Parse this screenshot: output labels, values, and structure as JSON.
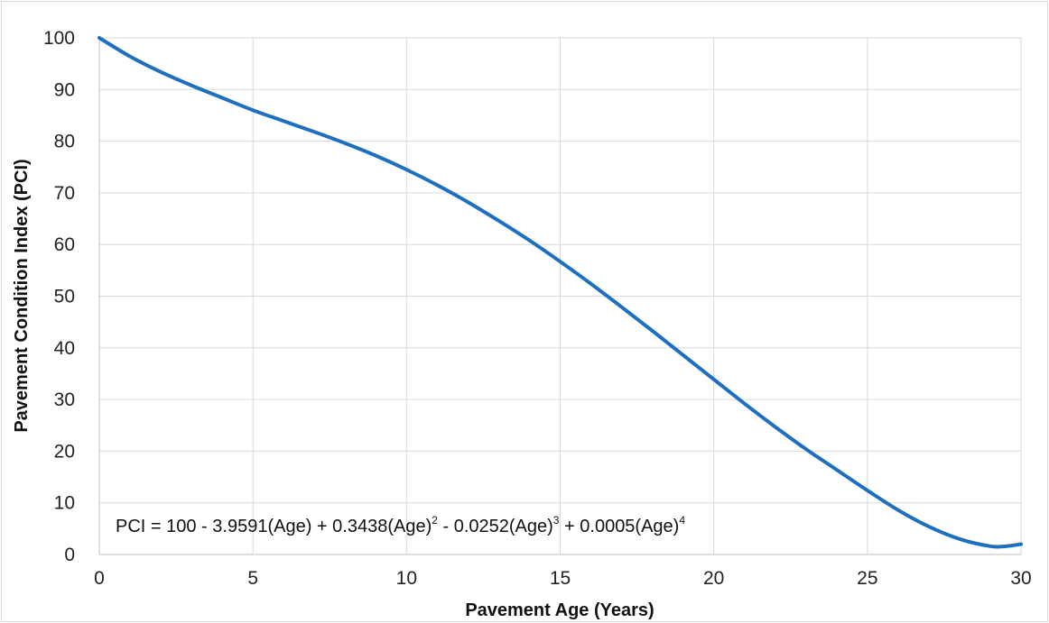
{
  "chart_data": {
    "type": "line",
    "title": "",
    "xlabel": "Pavement Age (Years)",
    "ylabel": "Pavement Condition Index (PCI)",
    "xlim": [
      0,
      30
    ],
    "ylim": [
      0,
      100
    ],
    "x_ticks": [
      "0",
      "5",
      "10",
      "15",
      "20",
      "25",
      "30"
    ],
    "y_ticks": [
      "0",
      "10",
      "20",
      "30",
      "40",
      "50",
      "60",
      "70",
      "80",
      "90",
      "100"
    ],
    "grid": true,
    "legend": "none",
    "annotation": {
      "parts": [
        {
          "text": "PCI = 100 - 3.9591(Age) + 0.3438(Age)",
          "sup": false
        },
        {
          "text": "2",
          "sup": true
        },
        {
          "text": " - 0.0252(Age)",
          "sup": false
        },
        {
          "text": "3",
          "sup": true
        },
        {
          "text": " + 0.0005(Age)",
          "sup": false
        },
        {
          "text": "4",
          "sup": true
        }
      ]
    },
    "series": [
      {
        "color": "#1f6fbf",
        "x": [
          0,
          1,
          2,
          3,
          4,
          5,
          6,
          7,
          8,
          9,
          10,
          11,
          12,
          13,
          14,
          15,
          16,
          17,
          18,
          19,
          20,
          21,
          22,
          23,
          24,
          25,
          26,
          27,
          28,
          29,
          29.5,
          30
        ],
        "y": [
          100,
          96.4,
          93.4,
          90.8,
          88.4,
          86.0,
          83.9,
          81.8,
          79.6,
          77.2,
          74.5,
          71.5,
          68.2,
          64.6,
          60.8,
          56.7,
          52.4,
          47.9,
          43.3,
          38.6,
          33.9,
          29.2,
          24.7,
          20.4,
          16.4,
          12.4,
          8.6,
          5.4,
          3.0,
          1.6,
          1.6,
          2.0
        ]
      }
    ]
  }
}
